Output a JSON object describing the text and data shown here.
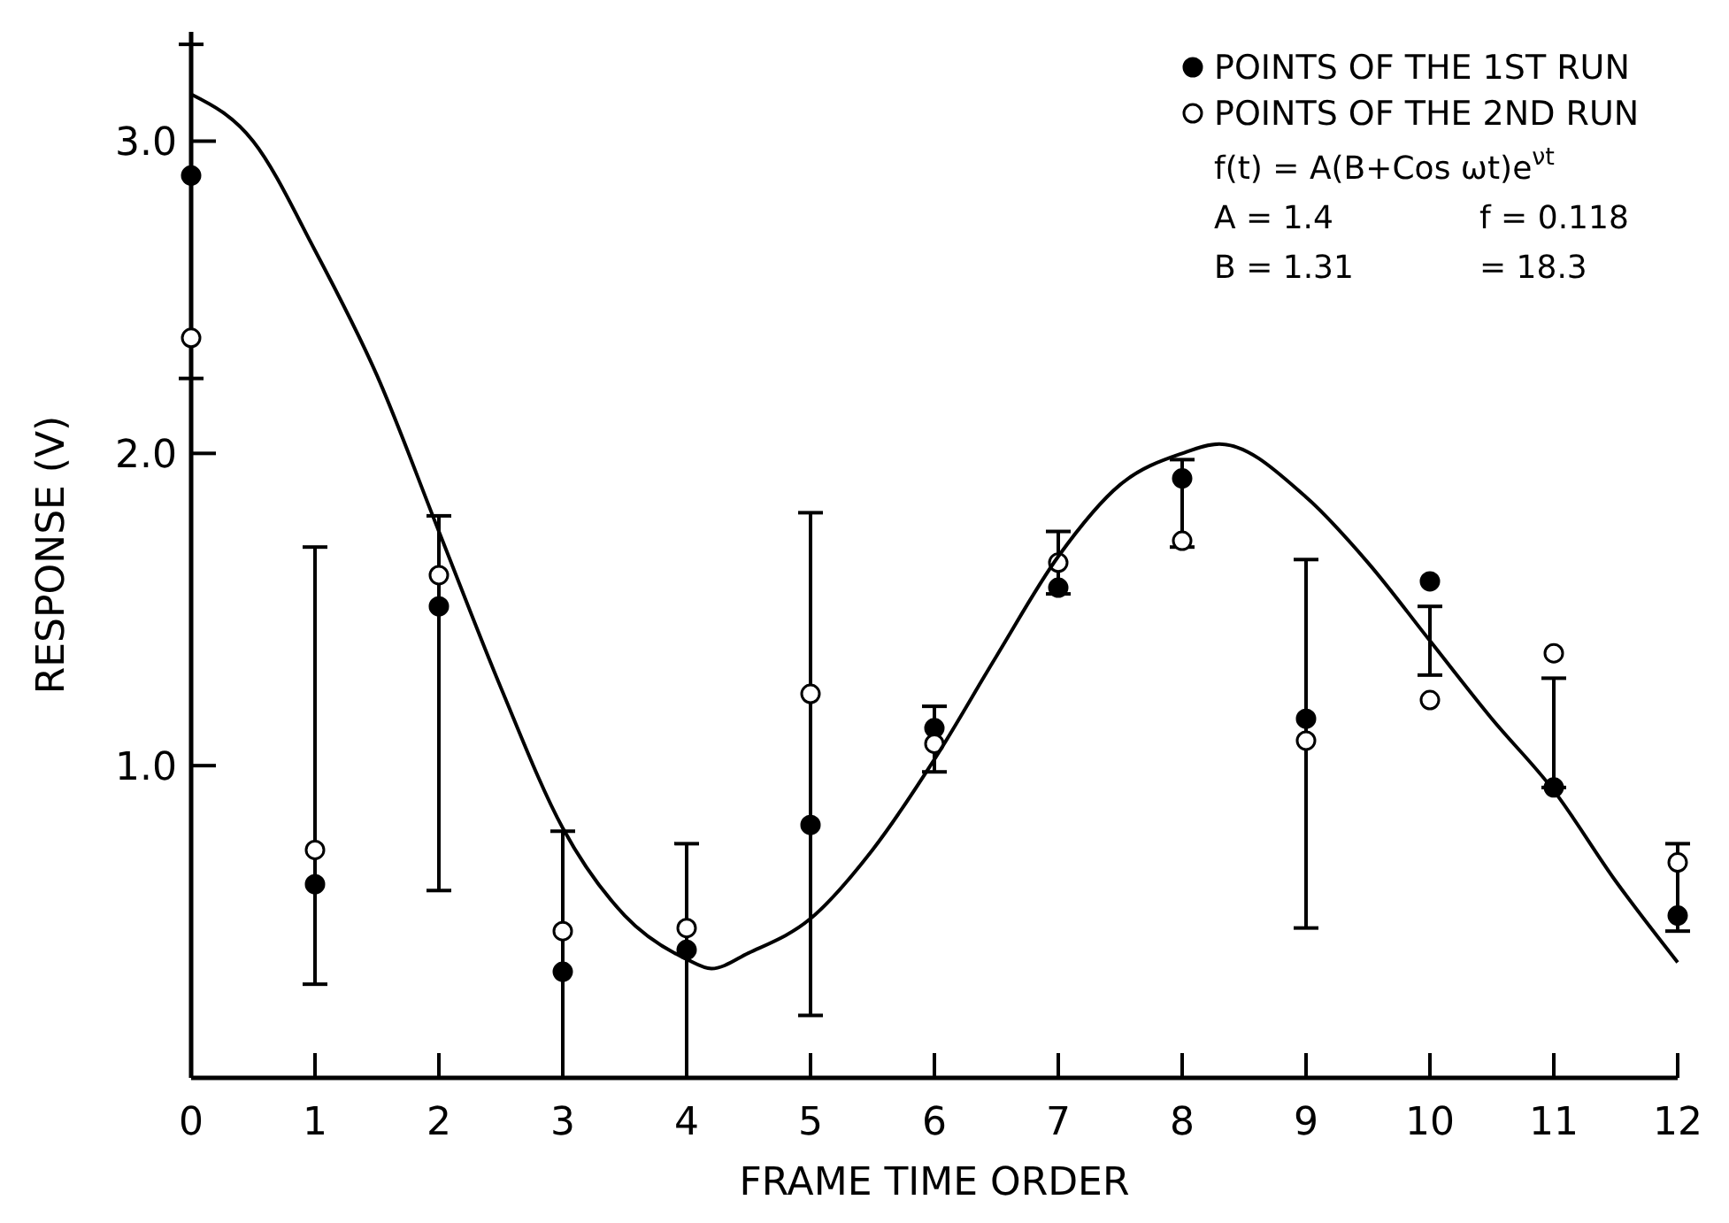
{
  "chart_data": {
    "type": "scatter",
    "xlabel": "FRAME TIME ORDER",
    "ylabel": "RESPONSE (V)",
    "xlim": [
      0,
      12
    ],
    "ylim": [
      0,
      3.35
    ],
    "xticks": [
      0,
      1,
      2,
      3,
      4,
      5,
      6,
      7,
      8,
      9,
      10,
      11,
      12
    ],
    "yticks": [
      {
        "value": 1,
        "label": "1.0"
      },
      {
        "value": 2,
        "label": "2.0"
      },
      {
        "value": 3,
        "label": "3.0"
      }
    ],
    "x": [
      0,
      1,
      2,
      3,
      4,
      5,
      6,
      7,
      8,
      9,
      10,
      11,
      12
    ],
    "legend": "top right",
    "grid": false,
    "series": [
      {
        "name": "POINTS OF THE 1ST RUN",
        "color": "#000000",
        "marker": "circle",
        "values": [
          2.89,
          0.62,
          1.51,
          0.34,
          0.41,
          0.81,
          1.12,
          1.57,
          1.92,
          1.15,
          1.59,
          0.93,
          0.52
        ],
        "errors": [
          [
            2.24,
            3.31
          ],
          [
            0.3,
            1.7
          ],
          [
            0.6,
            1.8
          ],
          [
            0,
            0.79
          ],
          [
            0,
            0.75
          ],
          [
            0.2,
            1.81
          ],
          [
            0.98,
            1.19
          ],
          [
            1.55,
            1.75
          ],
          [
            1.7,
            1.98
          ],
          [
            0.48,
            1.66
          ],
          [
            1.29,
            1.51
          ],
          [
            0.93,
            1.28
          ],
          [
            0.47,
            0.75
          ]
        ]
      },
      {
        "name": "POINTS OF THE 2ND RUN",
        "color": "#000000",
        "marker": "circle",
        "values": [
          2.37,
          0.73,
          1.61,
          0.47,
          0.48,
          1.23,
          1.07,
          1.65,
          1.72,
          1.08,
          1.21,
          1.36,
          0.69
        ]
      },
      {
        "type": "line",
        "color": "#000000",
        "line_style": "solid",
        "marker": "none",
        "x": [
          0,
          0.5,
          1,
          1.5,
          2,
          2.5,
          3,
          3.5,
          4,
          4.2,
          4.5,
          5,
          5.5,
          6,
          6.5,
          7,
          7.5,
          8,
          8.3,
          9,
          9.5,
          10,
          10.5,
          11,
          11.5,
          12
        ],
        "values": [
          3.15,
          3.0,
          2.65,
          2.25,
          1.75,
          1.25,
          0.8,
          0.52,
          0.38,
          0.35,
          0.4,
          0.51,
          0.73,
          1.02,
          1.35,
          1.67,
          1.9,
          2.0,
          2.03,
          1.86,
          1.65,
          1.4,
          1.15,
          0.92,
          0.63,
          0.37
        ]
      }
    ],
    "annotations": [
      "f(t) = A(B+Cos ωt)e$^{νt}$",
      "A = 1.4",
      "f = 0.118",
      "B = 1.31",
      "= 18.3"
    ]
  }
}
